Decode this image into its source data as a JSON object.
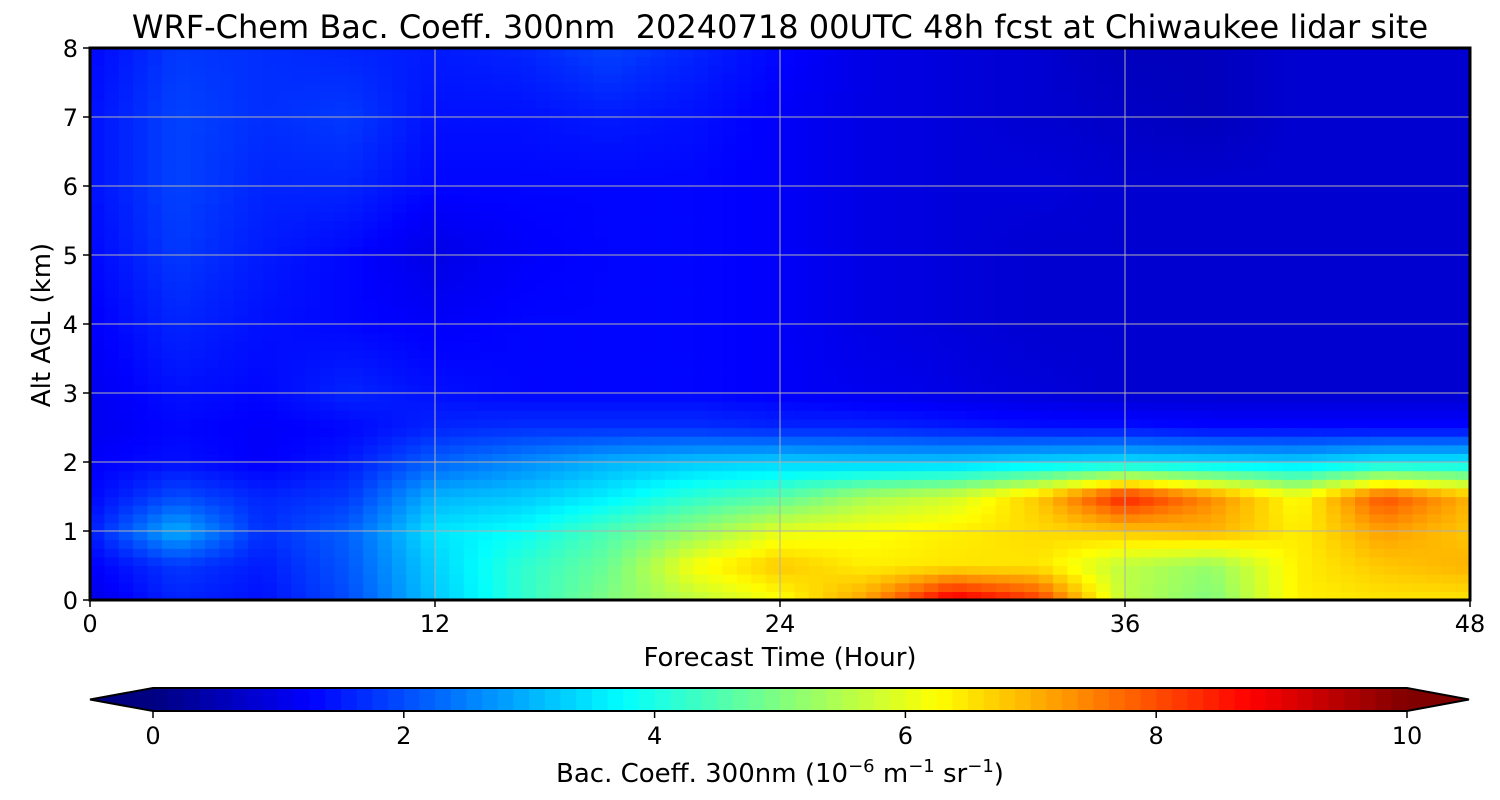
{
  "chart_data": {
    "type": "heatmap",
    "title": "WRF-Chem Bac. Coeff. 300nm  20240718 00UTC 48h fcst at Chiwaukee lidar site",
    "xlabel": "Forecast Time (Hour)",
    "ylabel": "Alt AGL (km)",
    "xlim": [
      0,
      48
    ],
    "ylim": [
      0,
      8
    ],
    "x_ticks": [
      "0",
      "12",
      "24",
      "36",
      "48"
    ],
    "y_ticks": [
      "0",
      "1",
      "2",
      "3",
      "4",
      "5",
      "6",
      "7",
      "8"
    ],
    "grid": true,
    "colormap": "jet",
    "colorbar": {
      "label_main": "Bac. Coeff. 300nm  (10",
      "label_exp1": "−6",
      "label_mid": " m",
      "label_exp2": "−1",
      "label_mid2": " sr",
      "label_exp3": "−1",
      "label_end": ")",
      "range": [
        0,
        10
      ],
      "ticks": [
        "0",
        "2",
        "4",
        "6",
        "8",
        "10"
      ],
      "extend": "both"
    },
    "x": [
      0,
      3,
      6,
      9,
      12,
      15,
      18,
      21,
      24,
      27,
      30,
      33,
      36,
      39,
      42,
      45,
      48
    ],
    "y": [
      0.0,
      0.5,
      1.0,
      1.5,
      2.0,
      2.5,
      3.0,
      4.0,
      5.0,
      6.0,
      7.0,
      8.0
    ],
    "z": [
      [
        1.0,
        1.6,
        1.4,
        2.0,
        3.2,
        4.2,
        5.0,
        5.6,
        6.2,
        7.2,
        9.0,
        8.2,
        5.6,
        5.0,
        6.4,
        6.5,
        6.5
      ],
      [
        1.2,
        1.8,
        1.5,
        2.1,
        3.3,
        4.2,
        4.8,
        6.2,
        6.8,
        6.4,
        6.5,
        6.5,
        5.6,
        5.2,
        6.4,
        6.8,
        7.0
      ],
      [
        1.5,
        3.0,
        1.7,
        2.2,
        3.5,
        3.8,
        4.5,
        5.2,
        6.0,
        6.2,
        6.4,
        6.6,
        6.8,
        7.0,
        6.4,
        7.2,
        6.8
      ],
      [
        1.3,
        2.0,
        1.6,
        1.8,
        3.0,
        3.2,
        3.6,
        4.2,
        4.6,
        5.4,
        5.8,
        6.8,
        8.5,
        7.4,
        6.2,
        8.0,
        7.0
      ],
      [
        1.2,
        1.4,
        1.2,
        1.5,
        2.2,
        2.6,
        3.0,
        3.2,
        3.3,
        3.2,
        3.2,
        3.4,
        3.5,
        3.4,
        3.3,
        3.6,
        3.6
      ],
      [
        1.1,
        1.3,
        1.2,
        1.3,
        1.6,
        1.7,
        1.7,
        1.7,
        1.6,
        1.6,
        1.5,
        1.4,
        1.4,
        1.3,
        1.3,
        1.3,
        1.3
      ],
      [
        1.1,
        1.4,
        1.3,
        1.6,
        1.4,
        1.3,
        1.3,
        1.3,
        1.2,
        1.1,
        1.0,
        0.9,
        0.8,
        0.8,
        0.8,
        0.8,
        0.8
      ],
      [
        1.2,
        1.6,
        1.4,
        1.3,
        1.2,
        1.3,
        1.3,
        1.3,
        1.2,
        1.0,
        0.9,
        0.8,
        0.8,
        0.8,
        0.8,
        0.8,
        0.8
      ],
      [
        1.3,
        1.8,
        1.5,
        1.3,
        1.0,
        1.2,
        1.3,
        1.3,
        1.2,
        1.0,
        0.9,
        0.8,
        0.8,
        0.8,
        0.8,
        0.8,
        0.8
      ],
      [
        1.4,
        1.9,
        1.6,
        1.6,
        1.3,
        1.3,
        1.3,
        1.3,
        1.2,
        1.0,
        0.9,
        0.9,
        0.8,
        0.8,
        0.8,
        0.8,
        0.8
      ],
      [
        1.4,
        1.9,
        1.7,
        1.8,
        1.4,
        1.4,
        1.5,
        1.4,
        1.2,
        1.0,
        0.9,
        0.8,
        0.7,
        0.6,
        0.8,
        0.8,
        0.8
      ],
      [
        1.3,
        1.8,
        1.7,
        1.6,
        1.5,
        1.6,
        1.9,
        1.6,
        1.3,
        1.0,
        0.9,
        0.8,
        0.6,
        0.6,
        0.8,
        0.8,
        0.8
      ]
    ]
  }
}
